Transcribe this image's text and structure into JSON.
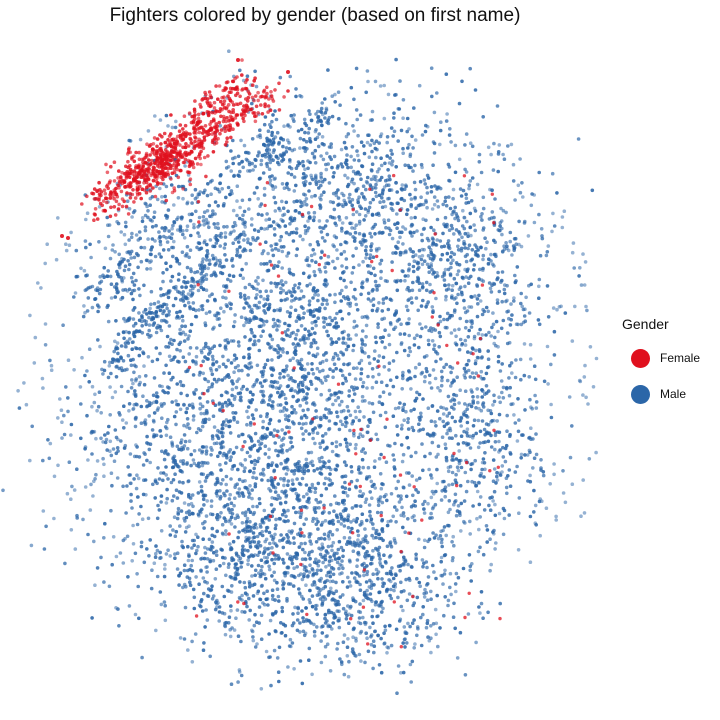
{
  "chart_data": {
    "type": "scatter",
    "title": "Fighters colored by gender (based on first name)",
    "xlabel": "",
    "ylabel": "",
    "grid": false,
    "axes_visible": false,
    "legend_placement": "right",
    "legend": {
      "title": "Gender",
      "entries": [
        {
          "label": "Female",
          "color": "#e0101e"
        },
        {
          "label": "Male",
          "color": "#2b66a8"
        }
      ]
    },
    "series": [
      {
        "name": "Female",
        "color": "#e0101e"
      },
      {
        "name": "Male",
        "color": "#2b66a8"
      }
    ]
  }
}
